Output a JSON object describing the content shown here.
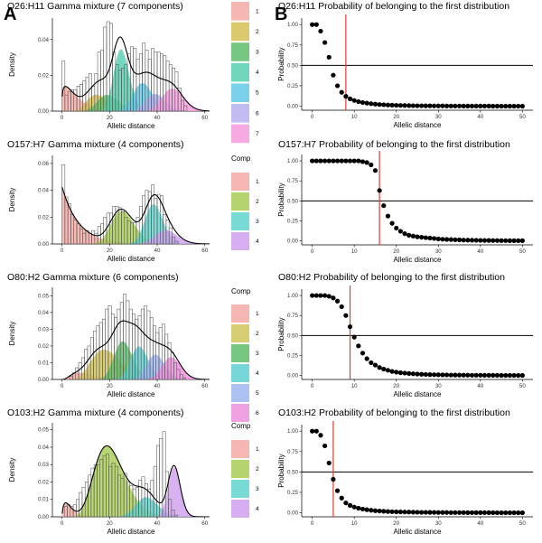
{
  "figure": {
    "panel_labels": [
      "A",
      "B"
    ],
    "legend_title": "Comp",
    "colors": {
      "1": "#f4a9a4",
      "2_7": "#d5bf54",
      "2_4": "#a8cd55",
      "3_7": "#5fbd6d",
      "3_4": "#5fd3cc",
      "4_7": "#57cfb0",
      "5_7": "#63c9e8",
      "6_7": "#b6b0ef",
      "7_7": "#f49bdc",
      "4_4": "#cfa0ee",
      "2_6": "#d2c45c",
      "3_6": "#5fbd6d",
      "4_6": "#5fcfd0",
      "5_6": "#9fb6f0",
      "6_6": "#ef8fdc",
      "curve": "#000000",
      "red_line": "#e23b2e",
      "hline": "#000000",
      "point": "#000000"
    }
  },
  "chart_data": [
    {
      "id": "A1",
      "type": "area",
      "title": "O26:H11 Gamma mixture (7 components)",
      "xlabel": "Allelic distance",
      "ylabel": "Density",
      "xlim": [
        -4,
        62
      ],
      "ylim": [
        0,
        0.052
      ],
      "xticks": [
        0,
        20,
        40,
        60
      ],
      "yticks": [
        0.0,
        0.02,
        0.04
      ],
      "ytick_labels": [
        "0.00",
        "0.02",
        "0.04"
      ],
      "legend_title": "",
      "legend": [
        "1",
        "2",
        "3",
        "4",
        "5",
        "6",
        "7"
      ],
      "legend_colors": [
        "#f4a9a4",
        "#d5bf54",
        "#5fbd6d",
        "#57cfb0",
        "#63c9e8",
        "#b6b0ef",
        "#f49bdc"
      ],
      "components": [
        {
          "weight": 0.12,
          "shape": 1.3,
          "scale": 5
        },
        {
          "weight": 0.1,
          "shape": 12,
          "scale": 1.3
        },
        {
          "weight": 0.1,
          "shape": 20,
          "scale": 1.0
        },
        {
          "weight": 0.28,
          "shape": 60,
          "scale": 0.42
        },
        {
          "weight": 0.16,
          "shape": 70,
          "scale": 0.49
        },
        {
          "weight": 0.1,
          "shape": 90,
          "scale": 0.44
        },
        {
          "weight": 0.14,
          "shape": 110,
          "scale": 0.425
        }
      ],
      "histogram": [
        0.028,
        0.009,
        0.011,
        0.012,
        0.012,
        0.014,
        0.015,
        0.017,
        0.019,
        0.021,
        0.014,
        0.021,
        0.033,
        0.034,
        0.047,
        0.05,
        0.049,
        0.033,
        0.026,
        0.023,
        0.024,
        0.026,
        0.032,
        0.036,
        0.035,
        0.029,
        0.032,
        0.038,
        0.034,
        0.029,
        0.035,
        0.033,
        0.033,
        0.032,
        0.031,
        0.028,
        0.026,
        0.024,
        0.022,
        0.013,
        0.006,
        0.003,
        0.0,
        0.0
      ],
      "hist_start": 0,
      "hist_width": 1.25
    },
    {
      "id": "B1",
      "type": "scatter",
      "title": "O26:H11 Probability of belonging to the first distribution",
      "xlabel": "Allelic distance",
      "ylabel": "Probability",
      "xlim": [
        -2.5,
        52.5
      ],
      "ylim": [
        -0.05,
        1.08
      ],
      "xticks": [
        0,
        10,
        20,
        30,
        40,
        50
      ],
      "yticks": [
        0.0,
        0.25,
        0.5,
        0.75,
        1.0
      ],
      "ytick_labels": [
        "0.00",
        "0.25",
        "0.50",
        "0.75",
        "1.00"
      ],
      "hline": 0.5,
      "vline": 8,
      "x": [
        0,
        1,
        2,
        3,
        4,
        5,
        6,
        7,
        8,
        9,
        10,
        11,
        12,
        13,
        14,
        15,
        16,
        17,
        18,
        19,
        20,
        21,
        22,
        23,
        24,
        25,
        26,
        27,
        28,
        29,
        30,
        31,
        32,
        33,
        34,
        35,
        36,
        37,
        38,
        39,
        40,
        41,
        42,
        43,
        44,
        45,
        46,
        47,
        48,
        49,
        50
      ],
      "y": [
        1.0,
        1.0,
        0.92,
        0.78,
        0.6,
        0.38,
        0.25,
        0.17,
        0.12,
        0.09,
        0.07,
        0.055,
        0.045,
        0.037,
        0.03,
        0.025,
        0.02,
        0.017,
        0.014,
        0.012,
        0.01,
        0.009,
        0.008,
        0.007,
        0.006,
        0.005,
        0.005,
        0.004,
        0.004,
        0.003,
        0.003,
        0.003,
        0.002,
        0.002,
        0.002,
        0.002,
        0.001,
        0.001,
        0.001,
        0.001,
        0.001,
        0.001,
        0.001,
        0.0,
        0.0,
        0.0,
        0.0,
        0.0,
        0.0,
        0.0,
        0.0
      ]
    },
    {
      "id": "A2",
      "type": "area",
      "title": "O157:H7 Gamma mixture (4 components)",
      "xlabel": "Allelic distance",
      "ylabel": "Density",
      "xlim": [
        -4,
        62
      ],
      "ylim": [
        0,
        0.066
      ],
      "xticks": [
        0,
        20,
        40,
        60
      ],
      "yticks": [
        0.0,
        0.02,
        0.04,
        0.06
      ],
      "ytick_labels": [
        "0.00",
        "0.02",
        "0.04",
        "0.06"
      ],
      "legend_title": "Comp",
      "legend": [
        "1",
        "2",
        "3",
        "4"
      ],
      "legend_colors": [
        "#f4a9a4",
        "#a8cd55",
        "#5fd3cc",
        "#cfa0ee"
      ],
      "components": [
        {
          "weight": 0.3,
          "shape": 1.0,
          "scale": 7
        },
        {
          "weight": 0.3,
          "shape": 28,
          "scale": 0.93
        },
        {
          "weight": 0.28,
          "shape": 105,
          "scale": 0.37
        },
        {
          "weight": 0.12,
          "shape": 90,
          "scale": 0.49
        }
      ],
      "histogram": [
        0.059,
        0.035,
        0.03,
        0.022,
        0.018,
        0.015,
        0.011,
        0.008,
        0.01,
        0.008,
        0.01,
        0.008,
        0.013,
        0.015,
        0.02,
        0.023,
        0.023,
        0.028,
        0.028,
        0.027,
        0.024,
        0.02,
        0.017,
        0.016,
        0.016,
        0.02,
        0.028,
        0.036,
        0.04,
        0.039,
        0.044,
        0.034,
        0.037,
        0.036,
        0.022,
        0.018,
        0.012,
        0.005,
        0.002,
        0.0,
        0.0
      ],
      "hist_start": 0,
      "hist_width": 1.25
    },
    {
      "id": "B2",
      "type": "scatter",
      "title": "O157:H7 Probability of belonging to the first distribution",
      "xlabel": "Allelic distance",
      "ylabel": "Probability",
      "xlim": [
        -2.5,
        52.5
      ],
      "ylim": [
        -0.05,
        1.08
      ],
      "xticks": [
        0,
        10,
        20,
        30,
        40,
        50
      ],
      "yticks": [
        0.0,
        0.25,
        0.5,
        0.75,
        1.0
      ],
      "ytick_labels": [
        "0.00",
        "0.25",
        "0.50",
        "0.75",
        "1.00"
      ],
      "hline": 0.5,
      "vline": 16,
      "x": [
        0,
        1,
        2,
        3,
        4,
        5,
        6,
        7,
        8,
        9,
        10,
        11,
        12,
        13,
        14,
        15,
        16,
        17,
        18,
        19,
        20,
        21,
        22,
        23,
        24,
        25,
        26,
        27,
        28,
        29,
        30,
        31,
        32,
        33,
        34,
        35,
        36,
        37,
        38,
        39,
        40,
        41,
        42,
        43,
        44,
        45,
        46,
        47,
        48,
        49,
        50
      ],
      "y": [
        1.0,
        1.0,
        1.0,
        1.0,
        1.0,
        1.0,
        1.0,
        1.0,
        1.0,
        1.0,
        1.0,
        1.0,
        0.99,
        0.98,
        0.95,
        0.88,
        0.63,
        0.44,
        0.31,
        0.22,
        0.16,
        0.12,
        0.09,
        0.07,
        0.06,
        0.05,
        0.045,
        0.04,
        0.035,
        0.03,
        0.025,
        0.02,
        0.018,
        0.016,
        0.014,
        0.012,
        0.01,
        0.009,
        0.008,
        0.007,
        0.006,
        0.005,
        0.005,
        0.004,
        0.004,
        0.003,
        0.003,
        0.002,
        0.002,
        0.002,
        0.002
      ]
    },
    {
      "id": "A3",
      "type": "area",
      "title": "O80:H2 Gamma mixture (6 components)",
      "xlabel": "Allelic distance",
      "ylabel": "Density",
      "xlim": [
        -4,
        62
      ],
      "ylim": [
        0,
        0.055
      ],
      "xticks": [
        0,
        20,
        40,
        60
      ],
      "yticks": [
        0.0,
        0.01,
        0.02,
        0.03,
        0.04,
        0.05
      ],
      "ytick_labels": [
        "0.00",
        "0.01",
        "0.02",
        "0.03",
        "0.04",
        "0.05"
      ],
      "legend_title": "Comp",
      "legend": [
        "1",
        "2",
        "3",
        "4",
        "5",
        "6"
      ],
      "legend_colors": [
        "#f4a9a4",
        "#d2c45c",
        "#5fbd6d",
        "#5fcfd0",
        "#9fb6f0",
        "#ef8fdc"
      ],
      "components": [
        {
          "weight": 0.05,
          "shape": 3.5,
          "scale": 3.0
        },
        {
          "weight": 0.28,
          "shape": 9,
          "scale": 2.2
        },
        {
          "weight": 0.22,
          "shape": 45,
          "scale": 0.58
        },
        {
          "weight": 0.18,
          "shape": 80,
          "scale": 0.41
        },
        {
          "weight": 0.14,
          "shape": 110,
          "scale": 0.36
        },
        {
          "weight": 0.13,
          "shape": 140,
          "scale": 0.33
        }
      ],
      "histogram": [
        0.0,
        0.002,
        0.004,
        0.007,
        0.01,
        0.013,
        0.018,
        0.02,
        0.025,
        0.029,
        0.032,
        0.034,
        0.036,
        0.042,
        0.044,
        0.039,
        0.037,
        0.042,
        0.046,
        0.051,
        0.047,
        0.042,
        0.039,
        0.036,
        0.038,
        0.042,
        0.044,
        0.041,
        0.037,
        0.032,
        0.028,
        0.031,
        0.033,
        0.027,
        0.022,
        0.016,
        0.01,
        0.006,
        0.003,
        0.001,
        0.0
      ],
      "hist_start": 2,
      "hist_width": 1.25
    },
    {
      "id": "B3",
      "type": "scatter",
      "title": "O80:H2 Probability of belonging to the first distribution",
      "xlabel": "Allelic distance",
      "ylabel": "Probability",
      "xlim": [
        -2.5,
        52.5
      ],
      "ylim": [
        -0.05,
        1.08
      ],
      "xticks": [
        0,
        10,
        20,
        30,
        40,
        50
      ],
      "yticks": [
        0.0,
        0.25,
        0.5,
        0.75,
        1.0
      ],
      "ytick_labels": [
        "0.00",
        "0.25",
        "0.50",
        "0.75",
        "1.00"
      ],
      "hline": 0.5,
      "vline": 9,
      "x": [
        0,
        1,
        2,
        3,
        4,
        5,
        6,
        7,
        8,
        9,
        10,
        11,
        12,
        13,
        14,
        15,
        16,
        17,
        18,
        19,
        20,
        21,
        22,
        23,
        24,
        25,
        26,
        27,
        28,
        29,
        30,
        31,
        32,
        33,
        34,
        35,
        36,
        37,
        38,
        39,
        40,
        41,
        42,
        43,
        44,
        45,
        46,
        47,
        48,
        49,
        50
      ],
      "y": [
        1.0,
        1.0,
        1.0,
        1.0,
        0.99,
        0.97,
        0.93,
        0.86,
        0.75,
        0.61,
        0.48,
        0.37,
        0.28,
        0.21,
        0.16,
        0.13,
        0.1,
        0.08,
        0.065,
        0.05,
        0.042,
        0.035,
        0.03,
        0.025,
        0.021,
        0.018,
        0.015,
        0.013,
        0.011,
        0.01,
        0.009,
        0.008,
        0.007,
        0.006,
        0.005,
        0.005,
        0.004,
        0.004,
        0.003,
        0.003,
        0.003,
        0.002,
        0.002,
        0.002,
        0.002,
        0.001,
        0.001,
        0.001,
        0.001,
        0.001,
        0.001
      ]
    },
    {
      "id": "A4",
      "type": "area",
      "title": "O103:H2 Gamma mixture (4 components)",
      "xlabel": "Allelic distance",
      "ylabel": "Density",
      "xlim": [
        -4,
        62
      ],
      "ylim": [
        0,
        0.054
      ],
      "xticks": [
        0,
        20,
        40,
        60
      ],
      "yticks": [
        0.0,
        0.01,
        0.02,
        0.03,
        0.04,
        0.05
      ],
      "ytick_labels": [
        "0.00",
        "0.01",
        "0.02",
        "0.03",
        "0.04",
        "0.05"
      ],
      "legend_title": "Comp",
      "legend": [
        "1",
        "2",
        "3",
        "4"
      ],
      "legend_colors": [
        "#f4a9a4",
        "#a8cd55",
        "#5fd3cc",
        "#cfa0ee"
      ],
      "components": [
        {
          "weight": 0.04,
          "shape": 1.8,
          "scale": 2.0
        },
        {
          "weight": 0.65,
          "shape": 10,
          "scale": 2.1
        },
        {
          "weight": 0.13,
          "shape": 60,
          "scale": 0.6
        },
        {
          "weight": 0.18,
          "shape": 350,
          "scale": 0.135
        }
      ],
      "histogram": [
        0.006,
        0.007,
        0.006,
        0.007,
        0.01,
        0.014,
        0.017,
        0.02,
        0.024,
        0.028,
        0.03,
        0.03,
        0.033,
        0.035,
        0.036,
        0.029,
        0.031,
        0.029,
        0.024,
        0.022,
        0.025,
        0.02,
        0.018,
        0.016,
        0.017,
        0.021,
        0.023,
        0.019,
        0.016,
        0.021,
        0.029,
        0.041,
        0.045,
        0.049,
        0.026,
        0.01,
        0.004,
        0.001,
        0.0
      ],
      "hist_start": 1,
      "hist_width": 1.25
    },
    {
      "id": "B4",
      "type": "scatter",
      "title": "O103:H2 Probability of belonging to the first distribution",
      "xlabel": "Allelic distance",
      "ylabel": "Probability",
      "xlim": [
        -2.5,
        52.5
      ],
      "ylim": [
        -0.05,
        1.08
      ],
      "xticks": [
        0,
        10,
        20,
        30,
        40,
        50
      ],
      "yticks": [
        0.0,
        0.25,
        0.5,
        0.75,
        1.0
      ],
      "ytick_labels": [
        "0.00",
        "0.25",
        "0.50",
        "0.75",
        "1.00"
      ],
      "hline": 0.5,
      "vline": 5,
      "x": [
        0,
        1,
        2,
        3,
        4,
        5,
        6,
        7,
        8,
        9,
        10,
        11,
        12,
        13,
        14,
        15,
        16,
        17,
        18,
        19,
        20,
        21,
        22,
        23,
        24,
        25,
        26,
        27,
        28,
        29,
        30,
        31,
        32,
        33,
        34,
        35,
        36,
        37,
        38,
        39,
        40,
        41,
        42,
        43,
        44,
        45,
        46,
        47,
        48,
        49,
        50
      ],
      "y": [
        1.0,
        1.0,
        0.95,
        0.82,
        0.61,
        0.41,
        0.27,
        0.18,
        0.12,
        0.09,
        0.07,
        0.055,
        0.045,
        0.037,
        0.03,
        0.025,
        0.021,
        0.018,
        0.015,
        0.013,
        0.011,
        0.01,
        0.009,
        0.008,
        0.007,
        0.006,
        0.005,
        0.005,
        0.004,
        0.004,
        0.003,
        0.003,
        0.003,
        0.002,
        0.002,
        0.002,
        0.002,
        0.001,
        0.001,
        0.001,
        0.001,
        0.001,
        0.001,
        0.001,
        0.0,
        0.0,
        0.0,
        0.0,
        0.0,
        0.0,
        0.0
      ]
    }
  ]
}
